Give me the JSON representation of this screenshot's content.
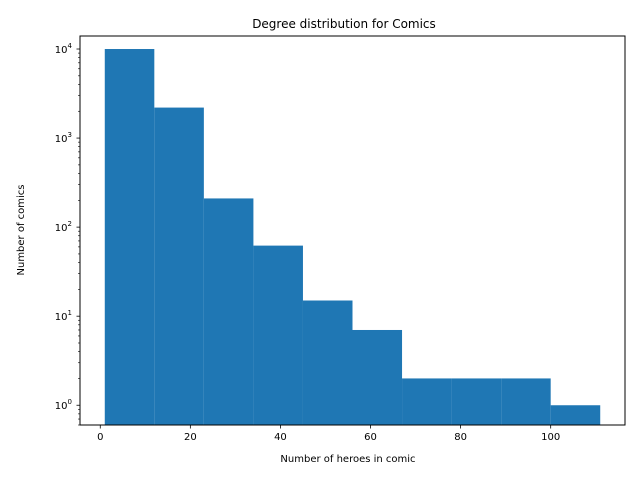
{
  "chart_data": {
    "type": "bar",
    "title": "Degree distribution for Comics",
    "xlabel": "Number of heroes in comic",
    "ylabel": "Number of comics",
    "y_scale": "log",
    "bar_color": "#1f77b4",
    "xlim": [
      -4.5,
      116.5
    ],
    "ylim": [
      0.6,
      14000
    ],
    "bins": [
      {
        "x0": 1,
        "x1": 12,
        "value": 10000
      },
      {
        "x0": 12,
        "x1": 23,
        "value": 2200
      },
      {
        "x0": 23,
        "x1": 34,
        "value": 210
      },
      {
        "x0": 34,
        "x1": 45,
        "value": 62
      },
      {
        "x0": 45,
        "x1": 56,
        "value": 15
      },
      {
        "x0": 56,
        "x1": 67,
        "value": 7
      },
      {
        "x0": 67,
        "x1": 78,
        "value": 2
      },
      {
        "x0": 78,
        "x1": 89,
        "value": 2
      },
      {
        "x0": 89,
        "x1": 100,
        "value": 2
      },
      {
        "x0": 100,
        "x1": 111,
        "value": 1
      }
    ],
    "x_ticks": [
      {
        "value": 0,
        "label": "0"
      },
      {
        "value": 20,
        "label": "20"
      },
      {
        "value": 40,
        "label": "40"
      },
      {
        "value": 60,
        "label": "60"
      },
      {
        "value": 80,
        "label": "80"
      },
      {
        "value": 100,
        "label": "100"
      }
    ],
    "y_ticks": [
      {
        "value": 1,
        "base": "10",
        "exp": "0"
      },
      {
        "value": 10,
        "base": "10",
        "exp": "1"
      },
      {
        "value": 100,
        "base": "10",
        "exp": "2"
      },
      {
        "value": 1000,
        "base": "10",
        "exp": "3"
      },
      {
        "value": 10000,
        "base": "10",
        "exp": "4"
      }
    ],
    "grid": false,
    "legend": "none"
  }
}
